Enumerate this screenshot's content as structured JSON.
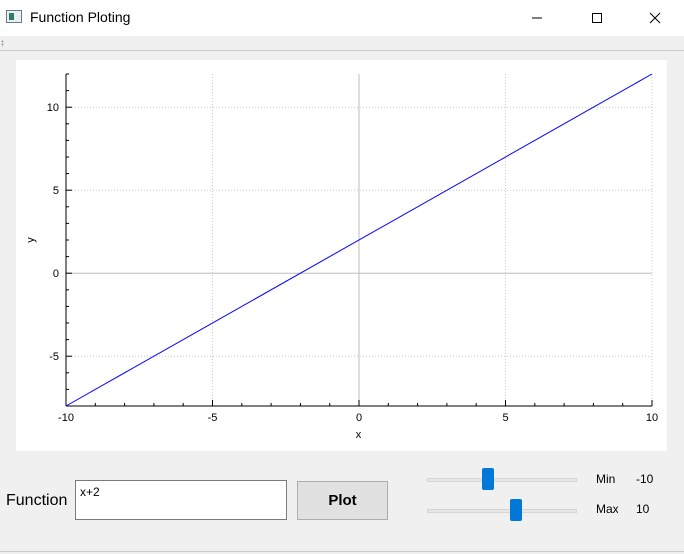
{
  "window": {
    "title": "Function Ploting",
    "controls": [
      "minimize-icon",
      "maximize-icon",
      "close-icon"
    ]
  },
  "colors": {
    "background": "#f0f0f0",
    "plot_line": "#0000ff",
    "slider_handle": "#0078d7",
    "grid": "#c8c8c8"
  },
  "chart_data": {
    "type": "line",
    "xlabel": "x",
    "ylabel": "y",
    "xlim": [
      -10,
      10
    ],
    "ylim": [
      -8,
      12
    ],
    "x_ticks": [
      -10,
      -5,
      0,
      5,
      10
    ],
    "y_ticks": [
      -5,
      0,
      5,
      10
    ],
    "grid": true,
    "series": [
      {
        "x": [
          -10,
          10
        ],
        "y": [
          -8,
          12
        ]
      }
    ]
  },
  "controls": {
    "function_label": "Function",
    "function_value": "x+2",
    "plot_button": "Plot",
    "min_label": "Min",
    "min_value": "-10",
    "max_label": "Max",
    "max_value": "10",
    "min_slider_fraction": 0.4,
    "max_slider_fraction": 0.6
  }
}
